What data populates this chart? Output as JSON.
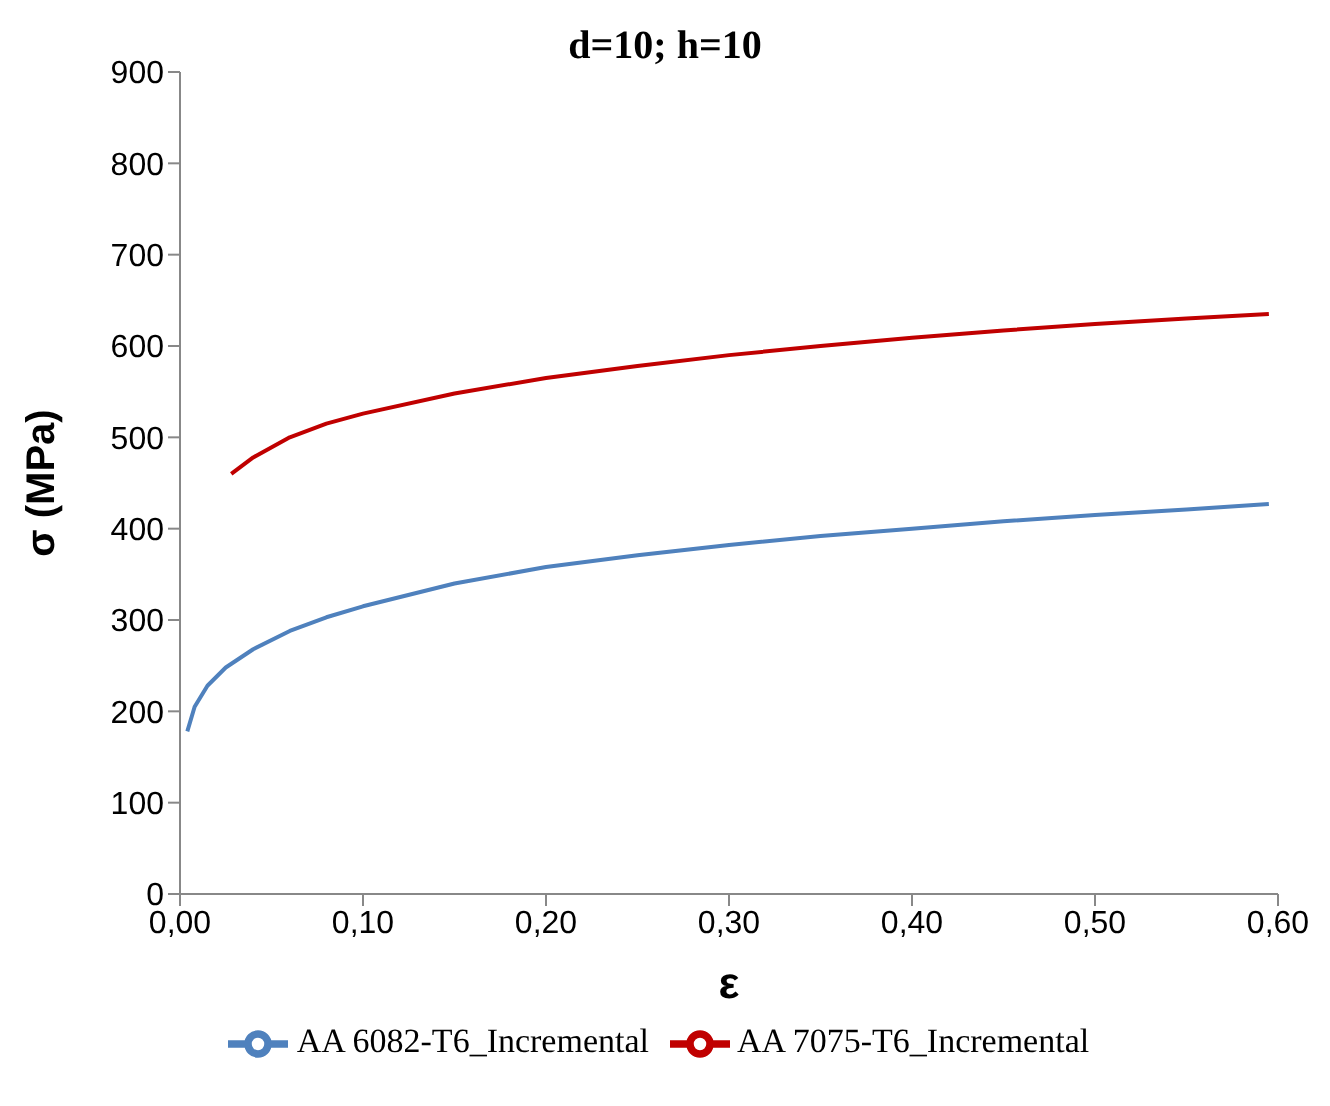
{
  "chart_data": {
    "type": "line",
    "title": "d=10; h=10",
    "xlabel": "ε",
    "ylabel": "σ (MPa)",
    "xlim": [
      0,
      0.6
    ],
    "xticks": [
      {
        "value": 0,
        "label": "0,00"
      },
      {
        "value": 0.1,
        "label": "0,10"
      },
      {
        "value": 0.2,
        "label": "0,20"
      },
      {
        "value": 0.3,
        "label": "0,30"
      },
      {
        "value": 0.4,
        "label": "0,40"
      },
      {
        "value": 0.5,
        "label": "0,50"
      },
      {
        "value": 0.6,
        "label": "0,60"
      }
    ],
    "ylim": [
      0,
      900
    ],
    "yticks": [
      0,
      100,
      200,
      300,
      400,
      500,
      600,
      700,
      800,
      900
    ],
    "grid": false,
    "legend": "bottom",
    "marker": "none",
    "line_style": "solid",
    "series": [
      {
        "name": "AA 7075-T6_Incremental",
        "color": "#c00000",
        "x": [
          0.028,
          0.04,
          0.06,
          0.08,
          0.1,
          0.15,
          0.2,
          0.25,
          0.3,
          0.35,
          0.4,
          0.45,
          0.5,
          0.55,
          0.595
        ],
        "values": [
          460,
          478,
          500,
          515,
          526,
          548,
          565,
          578,
          590,
          600,
          609,
          617,
          624,
          630,
          635
        ]
      },
      {
        "name": "AA 6082-T6_Incremental",
        "color": "#4f81bd",
        "x": [
          0.004,
          0.008,
          0.015,
          0.025,
          0.04,
          0.06,
          0.08,
          0.1,
          0.15,
          0.2,
          0.25,
          0.3,
          0.35,
          0.4,
          0.45,
          0.5,
          0.55,
          0.595
        ],
        "values": [
          178,
          205,
          228,
          248,
          268,
          288,
          303,
          315,
          340,
          358,
          371,
          382,
          392,
          400,
          408,
          415,
          421,
          427
        ]
      }
    ]
  }
}
